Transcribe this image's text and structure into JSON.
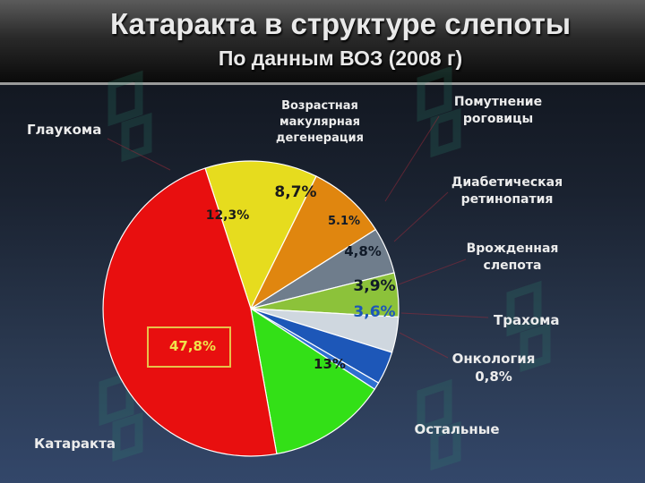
{
  "header": {
    "title": "Катаракта в структуре слепоты",
    "subtitle": "По данным ВОЗ (2008 г)"
  },
  "chart_data": {
    "type": "pie",
    "start_angle_deg": 108,
    "direction": "clockwise",
    "slices": [
      {
        "name": "Глаукома",
        "value": 12.3,
        "label": "12,3%",
        "color": "#e6dc1e",
        "label_color": "#1a1a1a"
      },
      {
        "name": "Возрастная макулярная дегенерация",
        "value": 8.7,
        "label": "8,7%",
        "color": "#e0860f",
        "label_color": "#1a1a1a"
      },
      {
        "name": "Помутнение роговицы",
        "value": 5.1,
        "label": "5.1%",
        "color": "#6f7d8c",
        "label_color": "#101a28"
      },
      {
        "name": "Диабетическая ретинопатия",
        "value": 4.8,
        "label": "4,8%",
        "color": "#8cc23a",
        "label_color": "#101a28"
      },
      {
        "name": "Врожденная слепота",
        "value": 3.9,
        "label": "3,9%",
        "color": "#cfd7df",
        "label_color": "#101a28"
      },
      {
        "name": "Трахома",
        "value": 3.6,
        "label": "3,6%",
        "color": "#1d57b8",
        "label_color": "#1d57b8"
      },
      {
        "name": "Онкология",
        "value": 0.8,
        "label": "0,8%",
        "color": "#2f6fd0",
        "label_color": "#ececec"
      },
      {
        "name": "Остальные",
        "value": 13,
        "label": "13%",
        "color": "#33e017",
        "label_color": "#1a1a1a"
      },
      {
        "name": "Катаракта",
        "value": 47.8,
        "label": "47,8%",
        "color": "#e80f0f",
        "label_color": "#f0e34a"
      }
    ]
  },
  "legend_labels": [
    {
      "key": "glaucoma",
      "lines": [
        "Глаукома"
      ]
    },
    {
      "key": "amd",
      "lines": [
        "Возрастная",
        "макулярная",
        "дегенерация"
      ]
    },
    {
      "key": "cornea",
      "lines": [
        "Помутнение",
        "роговицы"
      ]
    },
    {
      "key": "diabetic",
      "lines": [
        "Диабетическая",
        "ретинопатия"
      ]
    },
    {
      "key": "congenital",
      "lines": [
        "Врожденная",
        "слепота"
      ]
    },
    {
      "key": "trachoma",
      "lines": [
        "Трахома"
      ]
    },
    {
      "key": "oncology",
      "lines": [
        "Онкология",
        "0,8%"
      ]
    },
    {
      "key": "other",
      "lines": [
        "Остальные"
      ]
    },
    {
      "key": "cataract",
      "lines": [
        "Катаракта"
      ]
    }
  ]
}
